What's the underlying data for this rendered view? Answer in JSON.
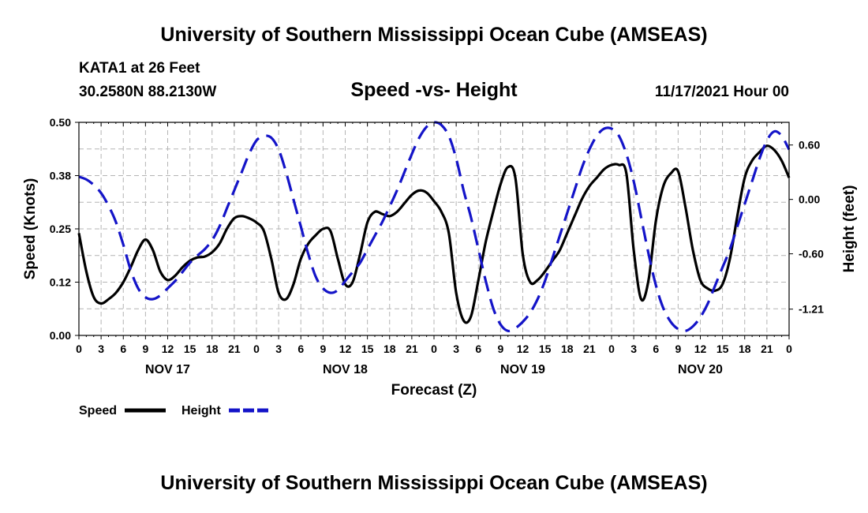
{
  "header": {
    "main_title": "University of Southern Mississippi Ocean Cube (AMSEAS)",
    "station": "KATA1 at 26 Feet",
    "coords": "30.2580N  88.2130W",
    "subtitle": "Speed -vs- Height",
    "datetime": "11/17/2021 Hour 00"
  },
  "footer": {
    "repeat_title": "University of Southern Mississippi Ocean Cube (AMSEAS)"
  },
  "chart_data": {
    "type": "line",
    "title": "Speed -vs- Height",
    "xlabel": "Forecast (Z)",
    "ylabel": "Speed (Knots)",
    "y2label": "Height (feet)",
    "xlim": [
      0,
      96
    ],
    "ylim": [
      0,
      0.5
    ],
    "y2lim": [
      -1.5,
      0.85
    ],
    "x_tick_labels": [
      "0",
      "3",
      "6",
      "9",
      "12",
      "15",
      "18",
      "21",
      "0",
      "3",
      "6",
      "9",
      "12",
      "15",
      "18",
      "21",
      "0",
      "3",
      "6",
      "9",
      "12",
      "15",
      "18",
      "21",
      "0",
      "3",
      "6",
      "9",
      "12",
      "15",
      "18",
      "21",
      "0"
    ],
    "day_labels": [
      {
        "label": "NOV 17",
        "x": 12
      },
      {
        "label": "NOV 18",
        "x": 36
      },
      {
        "label": "NOV 19",
        "x": 60
      },
      {
        "label": "NOV 20",
        "x": 84
      }
    ],
    "y_ticks": [
      {
        "value": 0.0,
        "label": "0.00"
      },
      {
        "value": 0.125,
        "label": "0.12"
      },
      {
        "value": 0.25,
        "label": "0.25"
      },
      {
        "value": 0.375,
        "label": "0.38"
      },
      {
        "value": 0.5,
        "label": "0.50"
      }
    ],
    "y2_ticks": [
      {
        "value": 0.6,
        "label": "0.60"
      },
      {
        "value": 0.0,
        "label": "0.00"
      },
      {
        "value": -0.6,
        "label": "-0.60"
      },
      {
        "value": -1.21,
        "label": "-1.21"
      }
    ],
    "legend": [
      {
        "name": "Speed",
        "color": "#000000",
        "dashed": false
      },
      {
        "name": "Height",
        "color": "#1414c8",
        "dashed": true
      }
    ],
    "series": [
      {
        "name": "Speed",
        "axis": "left",
        "color": "#000000",
        "x": [
          0,
          1,
          2,
          3,
          4,
          5,
          6,
          7,
          8,
          9,
          10,
          11,
          12,
          13,
          14,
          15,
          16,
          17,
          18,
          19,
          20,
          21,
          22,
          23,
          24,
          25,
          26,
          27,
          28,
          29,
          30,
          31,
          32,
          33,
          34,
          35,
          36,
          37,
          38,
          39,
          40,
          41,
          42,
          43,
          44,
          45,
          46,
          47,
          48,
          49,
          50,
          51,
          52,
          53,
          54,
          55,
          56,
          57,
          58,
          59,
          60,
          61,
          62,
          63,
          64,
          65,
          66,
          67,
          68,
          69,
          70,
          71,
          72,
          73,
          74,
          75,
          76,
          77,
          78,
          79,
          80,
          81,
          82,
          83,
          84,
          85,
          86,
          87,
          88,
          89,
          90,
          91,
          92,
          93,
          94,
          95,
          96
        ],
        "values": [
          0.24,
          0.15,
          0.09,
          0.075,
          0.085,
          0.1,
          0.125,
          0.16,
          0.2,
          0.225,
          0.2,
          0.15,
          0.13,
          0.14,
          0.16,
          0.175,
          0.183,
          0.185,
          0.195,
          0.215,
          0.25,
          0.275,
          0.28,
          0.275,
          0.265,
          0.245,
          0.18,
          0.1,
          0.085,
          0.12,
          0.18,
          0.215,
          0.235,
          0.25,
          0.245,
          0.18,
          0.12,
          0.125,
          0.19,
          0.265,
          0.29,
          0.285,
          0.28,
          0.29,
          0.31,
          0.33,
          0.34,
          0.335,
          0.315,
          0.29,
          0.24,
          0.1,
          0.035,
          0.045,
          0.13,
          0.22,
          0.29,
          0.355,
          0.395,
          0.37,
          0.19,
          0.125,
          0.13,
          0.15,
          0.175,
          0.2,
          0.24,
          0.28,
          0.32,
          0.35,
          0.37,
          0.39,
          0.4,
          0.4,
          0.38,
          0.2,
          0.085,
          0.13,
          0.27,
          0.35,
          0.38,
          0.385,
          0.3,
          0.2,
          0.13,
          0.11,
          0.105,
          0.12,
          0.18,
          0.28,
          0.37,
          0.41,
          0.43,
          0.445,
          0.435,
          0.41,
          0.37
        ]
      },
      {
        "name": "Height",
        "axis": "right",
        "color": "#1414c8",
        "x": [
          0,
          1,
          2,
          3,
          4,
          5,
          6,
          7,
          8,
          9,
          10,
          11,
          12,
          13,
          14,
          15,
          16,
          17,
          18,
          19,
          20,
          21,
          22,
          23,
          24,
          25,
          26,
          27,
          28,
          29,
          30,
          31,
          32,
          33,
          34,
          35,
          36,
          37,
          38,
          39,
          40,
          41,
          42,
          43,
          44,
          45,
          46,
          47,
          48,
          49,
          50,
          51,
          52,
          53,
          54,
          55,
          56,
          57,
          58,
          59,
          60,
          61,
          62,
          63,
          64,
          65,
          66,
          67,
          68,
          69,
          70,
          71,
          72,
          73,
          74,
          75,
          76,
          77,
          78,
          79,
          80,
          81,
          82,
          83,
          84,
          85,
          86,
          87,
          88,
          89,
          90,
          91,
          92,
          93,
          94,
          95,
          96
        ],
        "values": [
          0.25,
          0.22,
          0.16,
          0.07,
          -0.07,
          -0.25,
          -0.5,
          -0.78,
          -0.98,
          -1.08,
          -1.1,
          -1.06,
          -0.98,
          -0.9,
          -0.8,
          -0.7,
          -0.62,
          -0.55,
          -0.45,
          -0.3,
          -0.1,
          0.1,
          0.3,
          0.5,
          0.65,
          0.7,
          0.68,
          0.55,
          0.3,
          0.0,
          -0.3,
          -0.6,
          -0.85,
          -0.98,
          -1.03,
          -1.0,
          -0.9,
          -0.8,
          -0.7,
          -0.55,
          -0.4,
          -0.25,
          -0.08,
          0.1,
          0.3,
          0.5,
          0.68,
          0.8,
          0.85,
          0.82,
          0.7,
          0.45,
          0.1,
          -0.2,
          -0.55,
          -0.9,
          -1.2,
          -1.38,
          -1.45,
          -1.42,
          -1.35,
          -1.25,
          -1.1,
          -0.9,
          -0.65,
          -0.4,
          -0.15,
          0.1,
          0.35,
          0.55,
          0.7,
          0.78,
          0.78,
          0.7,
          0.5,
          0.2,
          -0.2,
          -0.6,
          -0.95,
          -1.2,
          -1.35,
          -1.43,
          -1.45,
          -1.4,
          -1.3,
          -1.15,
          -0.95,
          -0.75,
          -0.55,
          -0.3,
          -0.05,
          0.2,
          0.45,
          0.65,
          0.75,
          0.7,
          0.55
        ]
      }
    ]
  }
}
